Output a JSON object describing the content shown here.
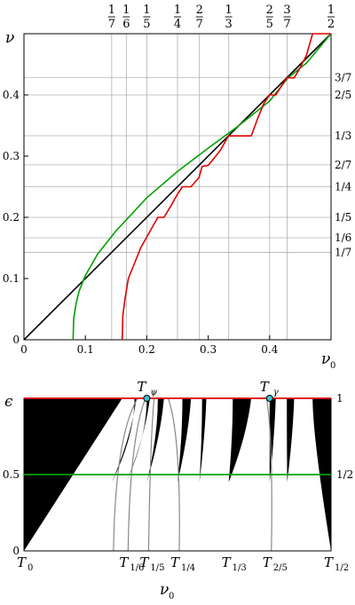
{
  "chart_data": [
    {
      "type": "line",
      "panel": "top",
      "xlabel_symbol": "ν",
      "xlabel_sub": "0",
      "ylabel_symbol": "ν",
      "xlim": [
        0,
        0.5
      ],
      "ylim": [
        0,
        0.5
      ],
      "x_ticks": [
        "0",
        "0.1",
        "0.2",
        "0.3",
        "0.4"
      ],
      "x_tick_values": [
        0,
        0.1,
        0.2,
        0.3,
        0.4
      ],
      "y_ticks": [
        "0",
        "0.1",
        "0.2",
        "0.3",
        "0.4"
      ],
      "y_tick_values": [
        0,
        0.1,
        0.2,
        0.3,
        0.4
      ],
      "top_fraction_ticks": [
        {
          "num": "1",
          "den": "7",
          "value": 0.142857
        },
        {
          "num": "1",
          "den": "6",
          "value": 0.166667
        },
        {
          "num": "1",
          "den": "5",
          "value": 0.2
        },
        {
          "num": "1",
          "den": "4",
          "value": 0.25
        },
        {
          "num": "2",
          "den": "7",
          "value": 0.285714
        },
        {
          "num": "1",
          "den": "3",
          "value": 0.333333
        },
        {
          "num": "2",
          "den": "5",
          "value": 0.4
        },
        {
          "num": "3",
          "den": "7",
          "value": 0.428571
        },
        {
          "num": "1",
          "den": "2",
          "value": 0.5
        }
      ],
      "right_fraction_ticks": [
        {
          "label": "3/7",
          "value": 0.428571
        },
        {
          "label": "2/5",
          "value": 0.4
        },
        {
          "label": "1/3",
          "value": 0.333333
        },
        {
          "label": "2/7",
          "value": 0.285714
        },
        {
          "label": "1/4",
          "value": 0.25
        },
        {
          "label": "1/5",
          "value": 0.2
        },
        {
          "label": "1/6",
          "value": 0.166667
        },
        {
          "label": "1/7",
          "value": 0.142857
        }
      ],
      "grid": true,
      "series": [
        {
          "color": "#000000",
          "x": [
            0,
            0.5
          ],
          "y": [
            0,
            0.5
          ]
        },
        {
          "color": "#00a000",
          "x": [
            0.08,
            0.081,
            0.085,
            0.09,
            0.1,
            0.12,
            0.15,
            0.2,
            0.25,
            0.3,
            0.35,
            0.4,
            0.43,
            0.46,
            0.5
          ],
          "y": [
            0,
            0.035,
            0.06,
            0.08,
            0.105,
            0.14,
            0.178,
            0.232,
            0.275,
            0.313,
            0.35,
            0.39,
            0.428,
            0.452,
            0.5
          ]
        },
        {
          "color": "#e00000",
          "x": [
            0.16,
            0.161,
            0.165,
            0.17,
            0.18,
            0.19,
            0.2,
            0.218,
            0.228,
            0.24,
            0.25,
            0.258,
            0.272,
            0.285,
            0.29,
            0.3,
            0.31,
            0.32,
            0.333,
            0.34,
            0.36,
            0.37,
            0.38,
            0.39,
            0.4,
            0.41,
            0.428,
            0.44,
            0.45,
            0.46,
            0.47,
            0.5
          ],
          "y": [
            0,
            0.04,
            0.07,
            0.1,
            0.125,
            0.15,
            0.168,
            0.2,
            0.2,
            0.22,
            0.238,
            0.25,
            0.25,
            0.265,
            0.283,
            0.285,
            0.297,
            0.31,
            0.333,
            0.333,
            0.333,
            0.333,
            0.36,
            0.385,
            0.4,
            0.4,
            0.428,
            0.428,
            0.445,
            0.465,
            0.5,
            0.5
          ]
        }
      ]
    },
    {
      "type": "area",
      "panel": "bottom",
      "xlabel_symbol": "ν",
      "xlabel_sub": "0",
      "ylabel_symbol": "ϵ",
      "xlim": [
        0,
        0.5
      ],
      "ylim": [
        0,
        1
      ],
      "y_ticks": [
        "0",
        "0.5"
      ],
      "y_tick_values": [
        0,
        0.5
      ],
      "right_ticks": [
        {
          "label": "1",
          "value": 1
        },
        {
          "label": "1/2",
          "value": 0.5
        }
      ],
      "bottom_labels": [
        {
          "symbol": "T",
          "sub": "0",
          "value": 0
        },
        {
          "symbol": "T",
          "sub": "1/6",
          "value": 0.166667
        },
        {
          "symbol": "T",
          "sub": "1/5",
          "value": 0.2
        },
        {
          "symbol": "T",
          "sub": "1/4",
          "value": 0.25
        },
        {
          "symbol": "T",
          "sub": "1/3",
          "value": 0.333333
        },
        {
          "symbol": "T",
          "sub": "2/5",
          "value": 0.4
        },
        {
          "symbol": "T",
          "sub": "1/2",
          "value": 0.5
        }
      ],
      "top_points": [
        {
          "symbol": "T",
          "sub": "ψ",
          "x": 0.2,
          "y": 1
        },
        {
          "symbol": "T",
          "sub": "γ",
          "x": 0.4,
          "y": 1
        }
      ],
      "lines": [
        {
          "color": "#e00000",
          "y": 1
        },
        {
          "color": "#00a000",
          "y": 0.5
        }
      ],
      "tongues": [
        {
          "x_bottom": 0,
          "x_top_left": 0,
          "x_top_right": 0.16
        },
        {
          "x_bottom": 0.142857,
          "x_top_left": 0.18,
          "x_top_right": 0.183
        },
        {
          "x_bottom": 0.166667,
          "x_top_left": 0.2,
          "x_top_right": 0.205
        },
        {
          "x_bottom": 0.2,
          "x_top_left": 0.218,
          "x_top_right": 0.228
        },
        {
          "x_bottom": 0.25,
          "x_top_left": 0.258,
          "x_top_right": 0.272
        },
        {
          "x_bottom": 0.285714,
          "x_top_left": 0.29,
          "x_top_right": 0.297
        },
        {
          "x_bottom": 0.333333,
          "x_top_left": 0.34,
          "x_top_right": 0.37
        },
        {
          "x_bottom": 0.4,
          "x_top_left": 0.4,
          "x_top_right": 0.41
        },
        {
          "x_bottom": 0.428571,
          "x_top_left": 0.428,
          "x_top_right": 0.44
        },
        {
          "x_bottom": 0.5,
          "x_top_left": 0.47,
          "x_top_right": 0.5
        }
      ]
    }
  ]
}
